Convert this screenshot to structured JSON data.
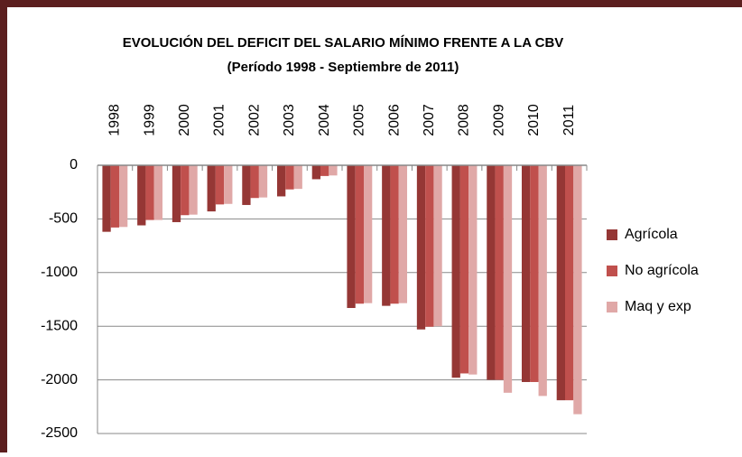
{
  "chart_data": {
    "type": "bar",
    "title": "EVOLUCIÓN DEL DEFICIT DEL SALARIO MÍNIMO FRENTE  A LA CBV",
    "subtitle": "(Período 1998 - Septiembre de 2011)",
    "categories": [
      "1998",
      "1999",
      "2000",
      "2001",
      "2002",
      "2003",
      "2004",
      "2005",
      "2006",
      "2007",
      "2008",
      "2009",
      "2010",
      "2011"
    ],
    "series": [
      {
        "name": "Agrícola",
        "color": "#953735",
        "values": [
          -620,
          -560,
          -530,
          -430,
          -370,
          -290,
          -130,
          -1330,
          -1310,
          -1530,
          -1980,
          -2000,
          -2020,
          -2190
        ]
      },
      {
        "name": "No agrícola",
        "color": "#c0504d",
        "values": [
          -580,
          -510,
          -465,
          -365,
          -305,
          -225,
          -100,
          -1290,
          -1290,
          -1505,
          -1940,
          -2000,
          -2020,
          -2190
        ]
      },
      {
        "name": "Maq y exp",
        "color": "#e0a8a7",
        "values": [
          -575,
          -510,
          -460,
          -360,
          -300,
          -220,
          -95,
          -1285,
          -1285,
          -1500,
          -1950,
          -2120,
          -2150,
          -2320
        ]
      }
    ],
    "ylim": [
      -2500,
      0
    ],
    "yticks": [
      0,
      -500,
      -1000,
      -1500,
      -2000,
      -2500
    ],
    "grid": true,
    "legend": "right"
  }
}
